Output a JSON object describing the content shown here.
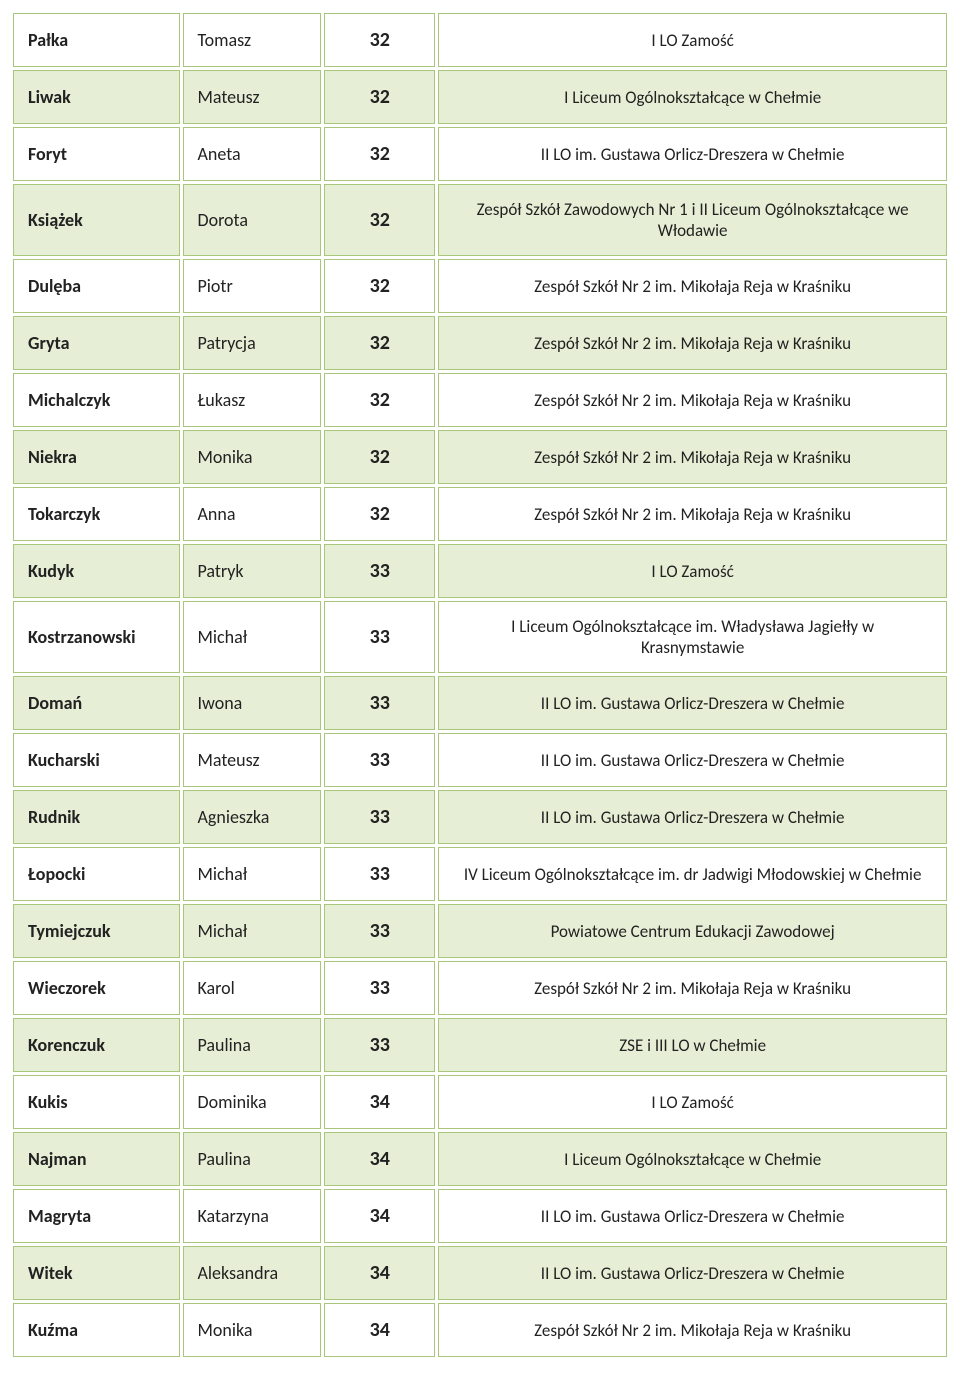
{
  "table": {
    "column_widths": [
      "18%",
      "15%",
      "12%",
      "55%"
    ],
    "border_color": "#a8c77b",
    "alt_row_bg": "#e6efd5",
    "plain_row_bg": "#ffffff",
    "rows": [
      {
        "surname": "Pałka",
        "first": "Tomasz",
        "num": "32",
        "school": "I LO Zamość"
      },
      {
        "surname": "Liwak",
        "first": "Mateusz",
        "num": "32",
        "school": "I Liceum Ogólnokształcące w Chełmie"
      },
      {
        "surname": "Foryt",
        "first": "Aneta",
        "num": "32",
        "school": "II LO im. Gustawa Orlicz-Dreszera w Chełmie"
      },
      {
        "surname": "Książek",
        "first": "Dorota",
        "num": "32",
        "school": "Zespół Szkół Zawodowych Nr 1 i II Liceum Ogólnokształcące we Włodawie"
      },
      {
        "surname": "Dulęba",
        "first": "Piotr",
        "num": "32",
        "school": "Zespół Szkół Nr 2 im. Mikołaja Reja w Kraśniku"
      },
      {
        "surname": "Gryta",
        "first": "Patrycja",
        "num": "32",
        "school": "Zespół Szkół Nr 2 im. Mikołaja Reja w Kraśniku"
      },
      {
        "surname": "Michalczyk",
        "first": "Łukasz",
        "num": "32",
        "school": "Zespół Szkół Nr 2 im. Mikołaja Reja w Kraśniku"
      },
      {
        "surname": "Niekra",
        "first": "Monika",
        "num": "32",
        "school": "Zespół Szkół Nr 2 im. Mikołaja Reja w Kraśniku"
      },
      {
        "surname": "Tokarczyk",
        "first": "Anna",
        "num": "32",
        "school": "Zespół Szkół Nr 2 im. Mikołaja Reja w Kraśniku"
      },
      {
        "surname": "Kudyk",
        "first": "Patryk",
        "num": "33",
        "school": "I LO Zamość"
      },
      {
        "surname": "Kostrzanowski",
        "first": "Michał",
        "num": "33",
        "school": "I Liceum Ogólnokształcące im. Władysława Jagiełły w Krasnymstawie"
      },
      {
        "surname": "Domań",
        "first": "Iwona",
        "num": "33",
        "school": "II LO im. Gustawa Orlicz-Dreszera w Chełmie"
      },
      {
        "surname": "Kucharski",
        "first": "Mateusz",
        "num": "33",
        "school": "II LO im. Gustawa Orlicz-Dreszera w Chełmie"
      },
      {
        "surname": "Rudnik",
        "first": "Agnieszka",
        "num": "33",
        "school": "II LO im. Gustawa Orlicz-Dreszera w Chełmie"
      },
      {
        "surname": "Łopocki",
        "first": "Michał",
        "num": "33",
        "school": "IV Liceum Ogólnokształcące im. dr Jadwigi Młodowskiej w Chełmie"
      },
      {
        "surname": "Tymiejczuk",
        "first": "Michał",
        "num": "33",
        "school": "Powiatowe Centrum Edukacji Zawodowej"
      },
      {
        "surname": "Wieczorek",
        "first": "Karol",
        "num": "33",
        "school": "Zespół Szkół Nr 2 im. Mikołaja Reja w Kraśniku"
      },
      {
        "surname": "Korenczuk",
        "first": "Paulina",
        "num": "33",
        "school": "ZSE i III LO w Chełmie"
      },
      {
        "surname": "Kukis",
        "first": "Dominika",
        "num": "34",
        "school": "I LO Zamość"
      },
      {
        "surname": "Najman",
        "first": "Paulina",
        "num": "34",
        "school": "I Liceum Ogólnokształcące w Chełmie"
      },
      {
        "surname": "Magryta",
        "first": "Katarzyna",
        "num": "34",
        "school": "II LO im. Gustawa Orlicz-Dreszera w Chełmie"
      },
      {
        "surname": "Witek",
        "first": "Aleksandra",
        "num": "34",
        "school": "II LO im. Gustawa Orlicz-Dreszera w Chełmie"
      },
      {
        "surname": "Kuźma",
        "first": "Monika",
        "num": "34",
        "school": "Zespół Szkół Nr 2 im. Mikołaja Reja w Kraśniku"
      }
    ]
  }
}
